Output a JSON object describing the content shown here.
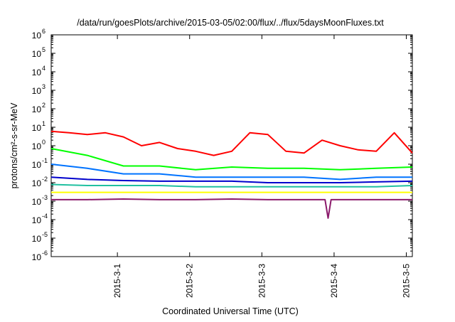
{
  "chart_data": {
    "type": "line",
    "title": "/data/run/goesPlots/archive/2015-03-05/02:00/flux/../flux/5daysMoonFluxes.txt",
    "xlabel": "Coordinated Universal Time (UTC)",
    "ylabel": "protons/cm²-s-sr-MeV",
    "yscale": "log",
    "ylim_exp": [
      -6,
      6
    ],
    "y_ticks": [
      {
        "base": "10",
        "exp": "-6"
      },
      {
        "base": "10",
        "exp": "-5"
      },
      {
        "base": "10",
        "exp": "-4"
      },
      {
        "base": "10",
        "exp": "-3"
      },
      {
        "base": "10",
        "exp": "-2"
      },
      {
        "base": "10",
        "exp": "-1"
      },
      {
        "base": "10",
        "exp": "0"
      },
      {
        "base": "10",
        "exp": "1"
      },
      {
        "base": "10",
        "exp": "2"
      },
      {
        "base": "10",
        "exp": "3"
      },
      {
        "base": "10",
        "exp": "4"
      },
      {
        "base": "10",
        "exp": "5"
      },
      {
        "base": "10",
        "exp": "6"
      }
    ],
    "xlim_days": [
      "2015-02-28 02:00",
      "2015-03-05 02:00"
    ],
    "x_ticks": [
      {
        "label": "2015-3-1",
        "date": "2015-03-01"
      },
      {
        "label": "2015-3-2",
        "date": "2015-03-02"
      },
      {
        "label": "2015-3-3",
        "date": "2015-03-03"
      },
      {
        "label": "2015-3-4",
        "date": "2015-03-04"
      },
      {
        "label": "2015-3-5",
        "date": "2015-03-05"
      }
    ],
    "grid": false,
    "legend": false,
    "series": [
      {
        "color": "#ff0000",
        "dates": [
          "2015-02-28 02:00",
          "2015-02-28 08:00",
          "2015-02-28 14:00",
          "2015-02-28 20:00",
          "2015-03-01 02:00",
          "2015-03-01 08:00",
          "2015-03-01 14:00",
          "2015-03-01 20:00",
          "2015-03-02 02:00",
          "2015-03-02 08:00",
          "2015-03-02 14:00",
          "2015-03-02 20:00",
          "2015-03-03 02:00",
          "2015-03-03 08:00",
          "2015-03-03 14:00",
          "2015-03-03 20:00",
          "2015-03-04 02:00",
          "2015-03-04 08:00",
          "2015-03-04 14:00",
          "2015-03-04 20:00",
          "2015-03-05 02:00"
        ],
        "values": [
          6,
          5,
          4,
          5,
          3,
          1,
          1.5,
          0.7,
          0.5,
          0.3,
          0.5,
          5,
          4,
          0.5,
          0.4,
          2,
          1,
          0.6,
          0.5,
          5,
          0.4
        ]
      },
      {
        "color": "#00ff00",
        "dates": [
          "2015-02-28 02:00",
          "2015-02-28 14:00",
          "2015-03-01 02:00",
          "2015-03-01 14:00",
          "2015-03-02 02:00",
          "2015-03-02 14:00",
          "2015-03-03 02:00",
          "2015-03-03 14:00",
          "2015-03-04 02:00",
          "2015-03-04 14:00",
          "2015-03-05 02:00"
        ],
        "values": [
          0.7,
          0.3,
          0.08,
          0.08,
          0.05,
          0.07,
          0.06,
          0.06,
          0.05,
          0.06,
          0.07
        ]
      },
      {
        "color": "#0073ff",
        "dates": [
          "2015-02-28 02:00",
          "2015-02-28 14:00",
          "2015-03-01 02:00",
          "2015-03-01 14:00",
          "2015-03-02 02:00",
          "2015-03-02 14:00",
          "2015-03-03 02:00",
          "2015-03-03 14:00",
          "2015-03-04 02:00",
          "2015-03-04 14:00",
          "2015-03-05 02:00"
        ],
        "values": [
          0.1,
          0.06,
          0.03,
          0.03,
          0.02,
          0.02,
          0.02,
          0.02,
          0.015,
          0.02,
          0.02
        ]
      },
      {
        "color": "#0000cc",
        "dates": [
          "2015-02-28 02:00",
          "2015-02-28 14:00",
          "2015-03-01 02:00",
          "2015-03-01 14:00",
          "2015-03-02 02:00",
          "2015-03-02 14:00",
          "2015-03-03 02:00",
          "2015-03-03 14:00",
          "2015-03-04 02:00",
          "2015-03-04 14:00",
          "2015-03-05 02:00"
        ],
        "values": [
          0.02,
          0.015,
          0.013,
          0.012,
          0.012,
          0.012,
          0.01,
          0.01,
          0.01,
          0.011,
          0.012
        ]
      },
      {
        "color": "#20c0a0",
        "dates": [
          "2015-02-28 02:00",
          "2015-02-28 14:00",
          "2015-03-01 02:00",
          "2015-03-01 14:00",
          "2015-03-02 02:00",
          "2015-03-02 14:00",
          "2015-03-03 02:00",
          "2015-03-03 14:00",
          "2015-03-04 02:00",
          "2015-03-04 14:00",
          "2015-03-05 02:00"
        ],
        "values": [
          0.008,
          0.007,
          0.007,
          0.007,
          0.006,
          0.006,
          0.006,
          0.006,
          0.006,
          0.006,
          0.007
        ]
      },
      {
        "color": "#ffff00",
        "dates": [
          "2015-02-28 02:00",
          "2015-02-28 14:00",
          "2015-03-01 02:00",
          "2015-03-01 14:00",
          "2015-03-02 02:00",
          "2015-03-02 14:00",
          "2015-03-03 02:00",
          "2015-03-03 14:00",
          "2015-03-04 02:00",
          "2015-03-04 14:00",
          "2015-03-05 02:00"
        ],
        "values": [
          0.003,
          0.003,
          0.003,
          0.003,
          0.003,
          0.003,
          0.003,
          0.003,
          0.003,
          0.003,
          0.003
        ]
      },
      {
        "color": "#8b1a6b",
        "dates": [
          "2015-02-28 02:00",
          "2015-02-28 14:00",
          "2015-03-01 02:00",
          "2015-03-01 14:00",
          "2015-03-02 02:00",
          "2015-03-02 14:00",
          "2015-03-03 02:00",
          "2015-03-03 14:00",
          "2015-03-03 21:00",
          "2015-03-03 22:00",
          "2015-03-03 23:00",
          "2015-03-04 14:00",
          "2015-03-05 02:00"
        ],
        "values": [
          0.0012,
          0.0012,
          0.0013,
          0.0012,
          0.0012,
          0.0013,
          0.0012,
          0.0012,
          0.0012,
          0.00012,
          0.0012,
          0.0012,
          0.0012
        ]
      }
    ]
  }
}
